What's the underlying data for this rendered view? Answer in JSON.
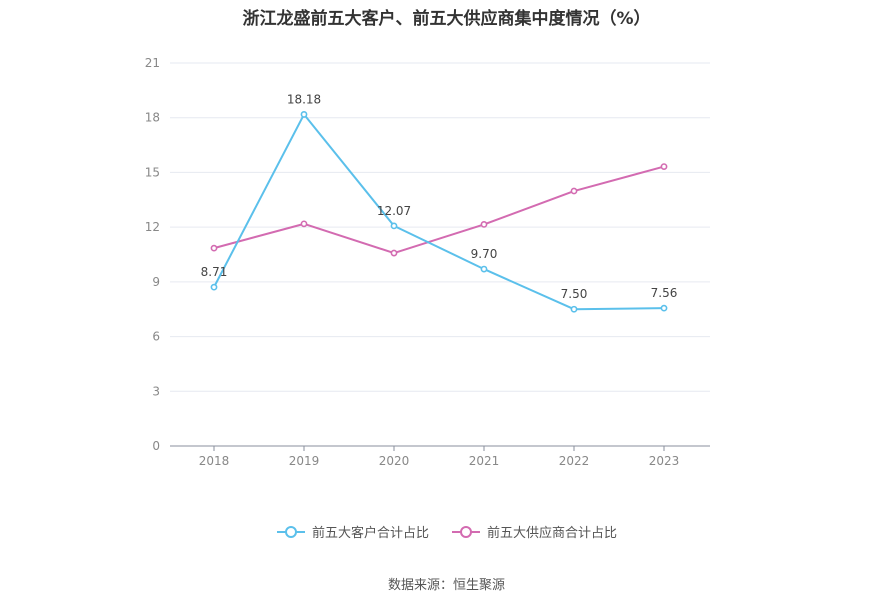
{
  "chart_data": {
    "type": "line",
    "title": "浙江龙盛前五大客户、前五大供应商集中度情况（%）",
    "xlabel": "",
    "ylabel": "",
    "categories": [
      "2018",
      "2019",
      "2020",
      "2021",
      "2022",
      "2023"
    ],
    "ylim": [
      0,
      21
    ],
    "yticks": [
      0,
      3,
      6,
      9,
      12,
      15,
      18,
      21
    ],
    "grid": true,
    "legend_position": "bottom",
    "series": [
      {
        "name": "前五大客户合计占比",
        "color": "#5bc0eb",
        "values": [
          8.71,
          18.18,
          12.07,
          9.7,
          7.5,
          7.56
        ],
        "labels": [
          "8.71",
          "18.18",
          "12.07",
          "9.70",
          "7.50",
          "7.56"
        ]
      },
      {
        "name": "前五大供应商合计占比",
        "color": "#d36bb1",
        "values": [
          10.85,
          12.18,
          10.58,
          12.15,
          13.98,
          15.32
        ],
        "labels": []
      }
    ]
  },
  "source": "数据来源：恒生聚源"
}
